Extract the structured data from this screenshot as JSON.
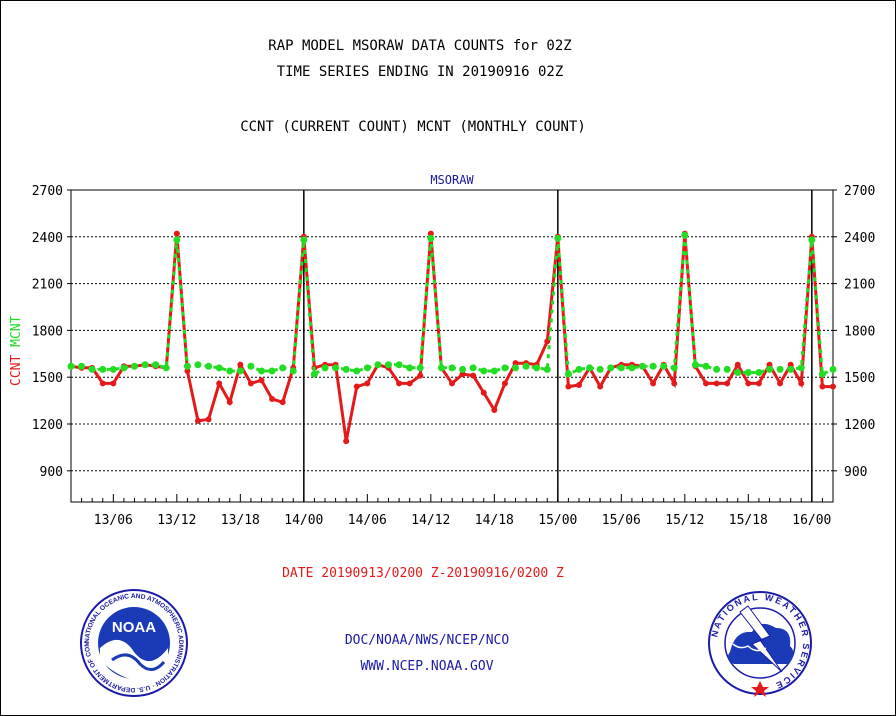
{
  "header": {
    "title_line1": "RAP MODEL MSORAW DATA COUNTS for 02Z",
    "title_line2": "TIME SERIES ENDING IN 20190916 02Z",
    "subtitle": "CCNT (CURRENT COUNT) MCNT (MONTHLY COUNT)"
  },
  "footer": {
    "date_range": "DATE 20190913/0200 Z-20190916/0200 Z",
    "org_line": "DOC/NOAA/NWS/NCEP/NCO",
    "url_line": "WWW.NCEP.NOAA.GOV"
  },
  "logos": {
    "noaa_label": "NOAA",
    "noaa_ring_text": "NATIONAL OCEANIC AND ATMOSPHERIC ADMINISTRATION · U.S. DEPARTMENT OF COMMERCE ·",
    "nws_ring_text": "NATIONAL WEATHER SERVICE"
  },
  "colors": {
    "ccnt": "#e41a1a",
    "mcnt": "#22dd22",
    "text_blue": "#1a1aa8",
    "grid": "#000000"
  },
  "chart_data": {
    "type": "line",
    "title": "MSORAW",
    "ylabel_series": [
      "CCNT",
      "MCNT"
    ],
    "ylim": [
      700,
      2700
    ],
    "yticks": [
      900,
      1200,
      1500,
      1800,
      2100,
      2400,
      2700
    ],
    "xlim": [
      2,
      74
    ],
    "x_unit": "hours since 20190913/0000 Z",
    "xticks": [
      {
        "x": 6,
        "label": "13/06"
      },
      {
        "x": 12,
        "label": "13/12"
      },
      {
        "x": 18,
        "label": "13/18"
      },
      {
        "x": 24,
        "label": "14/00"
      },
      {
        "x": 30,
        "label": "14/06"
      },
      {
        "x": 36,
        "label": "14/12"
      },
      {
        "x": 42,
        "label": "14/18"
      },
      {
        "x": 48,
        "label": "15/00"
      },
      {
        "x": 54,
        "label": "15/06"
      },
      {
        "x": 60,
        "label": "15/12"
      },
      {
        "x": 66,
        "label": "15/18"
      },
      {
        "x": 72,
        "label": "16/00"
      }
    ],
    "day_dividers": [
      24,
      48,
      72
    ],
    "grid": true,
    "series": [
      {
        "name": "CCNT",
        "color": "#e41a1a",
        "x": [
          2,
          3,
          4,
          5,
          6,
          7,
          8,
          9,
          10,
          11,
          12,
          13,
          14,
          15,
          16,
          17,
          18,
          19,
          20,
          21,
          22,
          23,
          24,
          25,
          26,
          27,
          28,
          29,
          30,
          31,
          32,
          33,
          34,
          35,
          36,
          37,
          38,
          39,
          40,
          41,
          42,
          43,
          44,
          45,
          46,
          47,
          48,
          49,
          50,
          51,
          52,
          53,
          54,
          55,
          56,
          57,
          58,
          59,
          60,
          61,
          62,
          63,
          64,
          65,
          66,
          67,
          68,
          69,
          70,
          71,
          72,
          73,
          74
        ],
        "values": [
          1570,
          1560,
          1560,
          1460,
          1460,
          1570,
          1570,
          1580,
          1570,
          1560,
          2420,
          1540,
          1220,
          1230,
          1460,
          1340,
          1580,
          1460,
          1480,
          1360,
          1340,
          1560,
          2400,
          1560,
          1580,
          1580,
          1090,
          1440,
          1460,
          1580,
          1560,
          1460,
          1460,
          1510,
          2420,
          1560,
          1460,
          1520,
          1510,
          1400,
          1290,
          1460,
          1590,
          1590,
          1580,
          1730,
          2400,
          1440,
          1450,
          1560,
          1440,
          1560,
          1580,
          1580,
          1570,
          1460,
          1580,
          1460,
          2420,
          1570,
          1460,
          1460,
          1460,
          1580,
          1460,
          1460,
          1580,
          1460,
          1580,
          1460,
          2400,
          1440,
          1440
        ]
      },
      {
        "name": "MCNT",
        "color": "#22dd22",
        "x": [
          2,
          3,
          4,
          5,
          6,
          7,
          8,
          9,
          10,
          11,
          12,
          13,
          14,
          15,
          16,
          17,
          18,
          19,
          20,
          21,
          22,
          23,
          24,
          25,
          26,
          27,
          28,
          29,
          30,
          31,
          32,
          33,
          34,
          35,
          36,
          37,
          38,
          39,
          40,
          41,
          42,
          43,
          44,
          45,
          46,
          47,
          48,
          49,
          50,
          51,
          52,
          53,
          54,
          55,
          56,
          57,
          58,
          59,
          60,
          61,
          62,
          63,
          64,
          65,
          66,
          67,
          68,
          69,
          70,
          71,
          72,
          73,
          74
        ],
        "values": [
          1570,
          1570,
          1550,
          1550,
          1550,
          1560,
          1570,
          1580,
          1580,
          1560,
          2380,
          1570,
          1580,
          1570,
          1560,
          1540,
          1540,
          1570,
          1540,
          1540,
          1560,
          1540,
          2380,
          1520,
          1560,
          1560,
          1550,
          1540,
          1560,
          1580,
          1580,
          1580,
          1560,
          1560,
          2390,
          1560,
          1560,
          1550,
          1560,
          1540,
          1540,
          1560,
          1560,
          1570,
          1560,
          1550,
          2390,
          1520,
          1550,
          1560,
          1550,
          1560,
          1560,
          1560,
          1570,
          1570,
          1570,
          1560,
          2410,
          1580,
          1570,
          1550,
          1550,
          1530,
          1530,
          1530,
          1550,
          1550,
          1550,
          1560,
          2380,
          1520,
          1550
        ]
      }
    ]
  }
}
